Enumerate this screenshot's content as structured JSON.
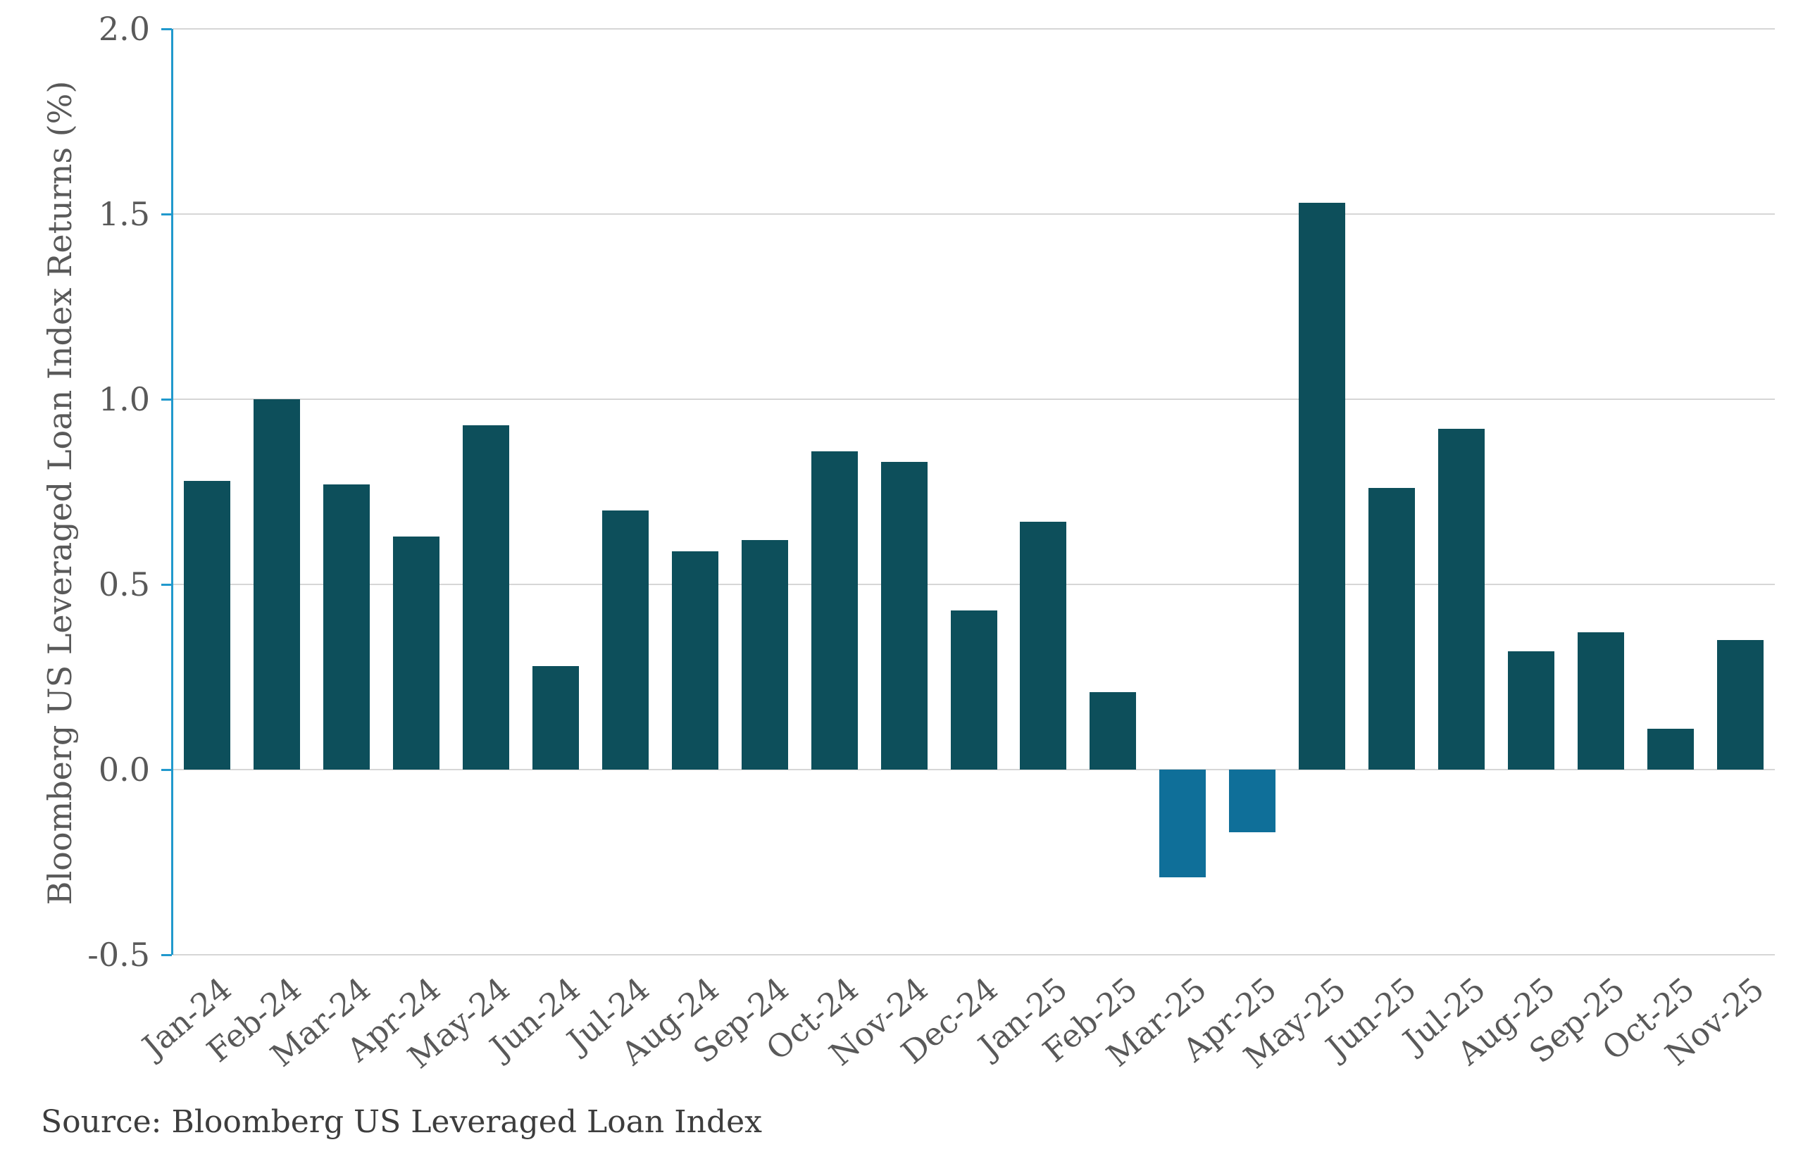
{
  "chart_data": {
    "type": "bar",
    "title": "",
    "ylabel": "Bloomberg US Leveraged Loan Index Returns (%)",
    "xlabel": "",
    "source_note": "Source: Bloomberg US Leveraged Loan Index",
    "categories": [
      "Jan-24",
      "Feb-24",
      "Mar-24",
      "Apr-24",
      "May-24",
      "Jun-24",
      "Jul-24",
      "Aug-24",
      "Sep-24",
      "Oct-24",
      "Nov-24",
      "Dec-24",
      "Jan-25",
      "Feb-25",
      "Mar-25",
      "Apr-25",
      "May-25",
      "Jun-25",
      "Jul-25",
      "Aug-25",
      "Sep-25",
      "Oct-25",
      "Nov-25"
    ],
    "values": [
      0.78,
      1.0,
      0.77,
      0.63,
      0.93,
      0.28,
      0.7,
      0.59,
      0.62,
      0.86,
      0.83,
      0.43,
      0.67,
      0.21,
      -0.29,
      -0.17,
      1.53,
      0.76,
      0.92,
      0.32,
      0.37,
      0.11,
      0.35
    ],
    "ylim": [
      -0.5,
      2.0
    ],
    "yticks": [
      2.0,
      1.5,
      1.0,
      0.5,
      0.0,
      -0.5
    ],
    "ytick_labels": [
      "2.0",
      "1.5",
      "1.0",
      "0.5",
      "0.0",
      "-0.5"
    ],
    "grid": true,
    "legend": false,
    "colors": {
      "bar_positive": "#0d4f5b",
      "bar_negative": "#0f6f99",
      "axis_spine": "#2199cd",
      "gridline": "#d6d6d6",
      "tick_label": "#595959",
      "axis_title": "#595959",
      "source_text": "#3d3d3d",
      "background": "#ffffff"
    }
  }
}
